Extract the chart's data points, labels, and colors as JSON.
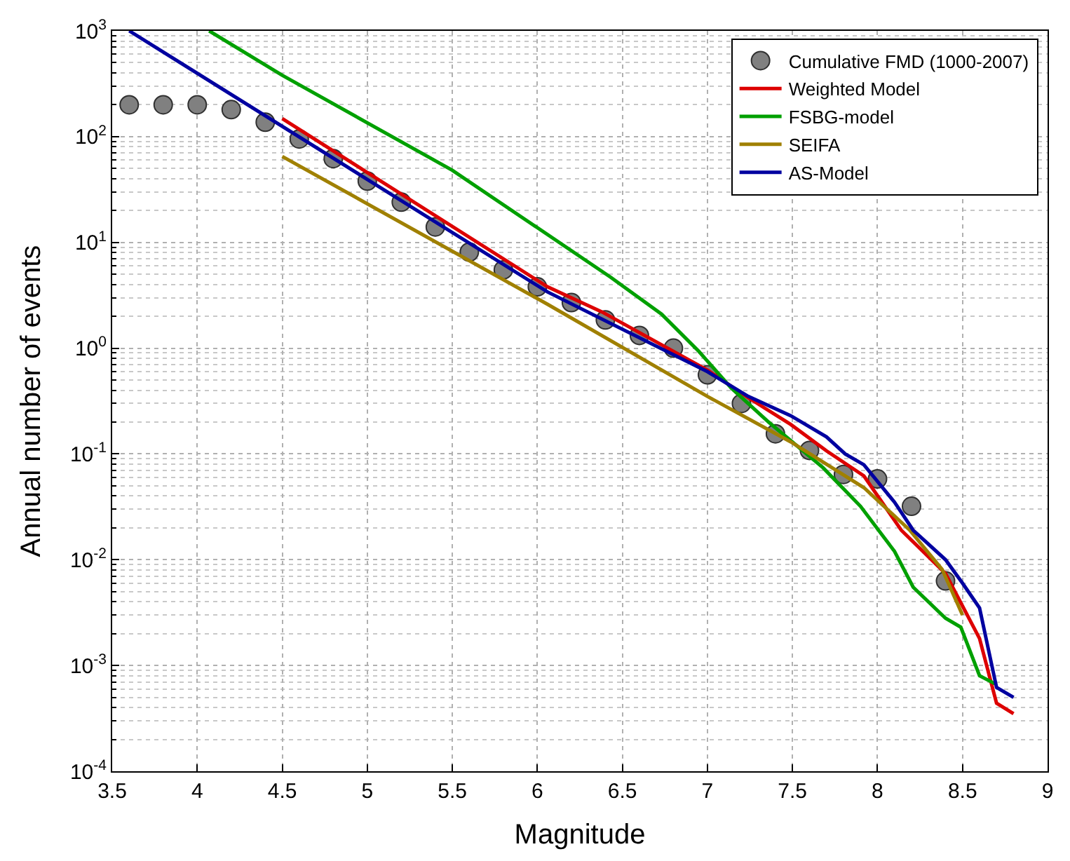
{
  "chart_data": {
    "type": "line",
    "xlabel": "Magnitude",
    "ylabel": "Annual number of events",
    "log": "y",
    "grid": true,
    "legend": "top right",
    "xlim": [
      3.5,
      9
    ],
    "xticks": [
      3.5,
      4,
      4.5,
      5,
      5.5,
      6,
      6.5,
      7,
      7.5,
      8,
      8.5,
      9
    ],
    "ylim": [
      0.0001,
      1000
    ],
    "yticks": [
      {
        "value": 0.0001,
        "label": "10$^{-4}$"
      },
      {
        "value": 0.001,
        "label": "10$^{-3}$"
      },
      {
        "value": 0.01,
        "label": "10$^{-2}$"
      },
      {
        "value": 0.1,
        "label": "10$^{-1}$"
      },
      {
        "value": 1,
        "label": "10$^{0}$"
      },
      {
        "value": 10,
        "label": "10$^{1}$"
      },
      {
        "value": 100,
        "label": "10$^{2}$"
      },
      {
        "value": 1000,
        "label": "10$^{3}$"
      }
    ],
    "series": [
      {
        "name": "Cumulative FMD (1000-2007)",
        "type": "scatter",
        "marker": "circle",
        "color": "#808080",
        "x": [
          3.6,
          3.8,
          4.0,
          4.2,
          4.4,
          4.6,
          4.8,
          5.0,
          5.2,
          5.4,
          5.6,
          5.8,
          6.0,
          6.2,
          6.4,
          6.6,
          6.8,
          7.0,
          7.2,
          7.4,
          7.6,
          7.8,
          8.0,
          8.2,
          8.4
        ],
        "values": [
          200,
          200,
          200,
          180,
          137,
          95,
          62,
          38,
          24,
          14,
          8.1,
          5.5,
          3.8,
          2.7,
          1.85,
          1.32,
          1.0,
          0.56,
          0.3,
          0.155,
          0.108,
          0.064,
          0.058,
          0.032,
          0.0063
        ]
      },
      {
        "name": "Weighted Model",
        "color": "#dd0000",
        "x": [
          4.5,
          6.06,
          6.38,
          7.0,
          7.24,
          7.49,
          7.7,
          7.92,
          8.14,
          8.4,
          8.6,
          8.7,
          8.8
        ],
        "values": [
          148,
          3.8,
          2.2,
          0.62,
          0.34,
          0.19,
          0.107,
          0.062,
          0.019,
          0.0074,
          0.0018,
          0.00044,
          0.00035
        ]
      },
      {
        "name": "FSBG-model",
        "color": "#00a000",
        "x": [
          4.07,
          4.5,
          5.5,
          6.43,
          6.73,
          6.95,
          7.14,
          7.36,
          7.68,
          7.9,
          8.1,
          8.21,
          8.4,
          8.49,
          8.6,
          8.7
        ],
        "values": [
          1000,
          380,
          48,
          4.7,
          2.1,
          0.93,
          0.42,
          0.2,
          0.074,
          0.032,
          0.012,
          0.0055,
          0.0028,
          0.0023,
          0.0008,
          0.00066
        ]
      },
      {
        "name": "SEIFA",
        "color": "#a08000",
        "x": [
          4.5,
          6.06,
          7.0,
          7.49,
          7.92,
          8.19,
          8.38,
          8.5
        ],
        "values": [
          65,
          2.6,
          0.35,
          0.13,
          0.048,
          0.019,
          0.0081,
          0.003
        ]
      },
      {
        "name": "AS-Model",
        "color": "#0000a0",
        "x": [
          3.6,
          6.06,
          7.0,
          7.24,
          7.49,
          7.7,
          7.81,
          7.92,
          8.1,
          8.21,
          8.4,
          8.5,
          8.6,
          8.7,
          8.8
        ],
        "values": [
          1000,
          3.4,
          0.6,
          0.35,
          0.23,
          0.145,
          0.1,
          0.079,
          0.035,
          0.019,
          0.01,
          0.006,
          0.0035,
          0.00062,
          0.0005
        ]
      }
    ]
  }
}
